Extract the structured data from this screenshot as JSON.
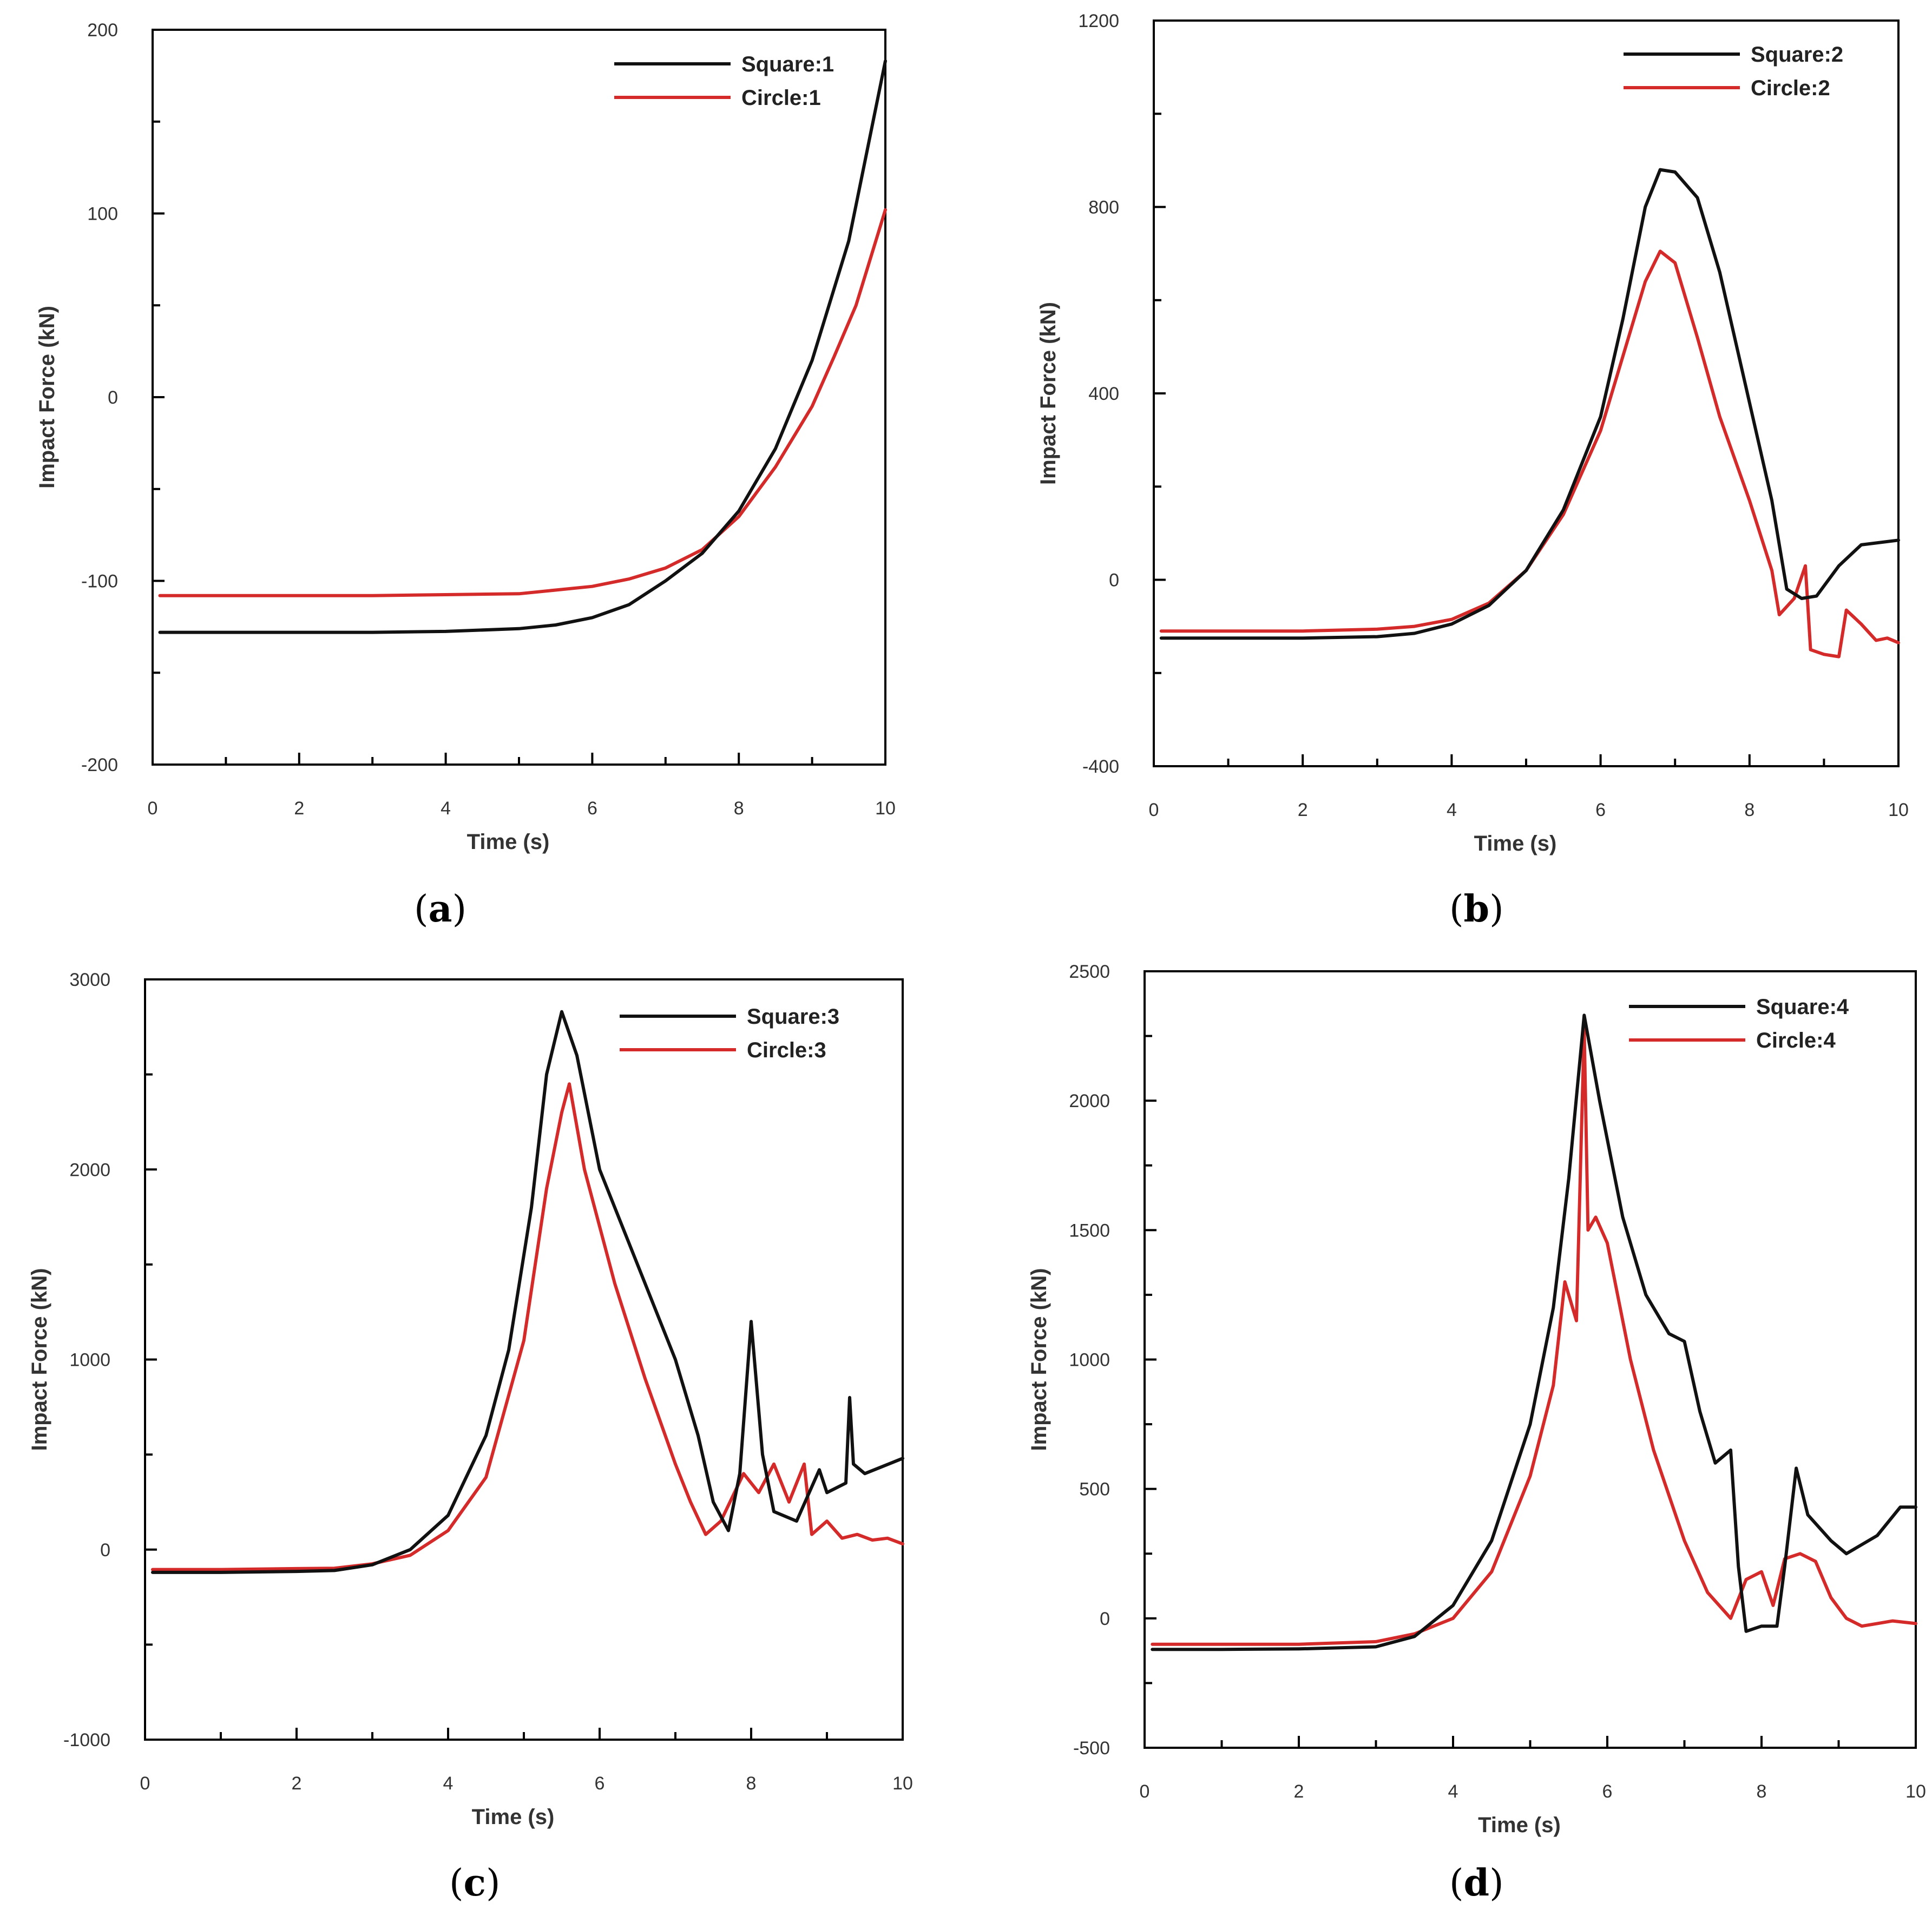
{
  "colors": {
    "square": "#111111",
    "circle": "#d42a2a",
    "axis": "#000000"
  },
  "chart_data": [
    {
      "type": "line",
      "panel": "a",
      "caption_letter": "a",
      "xlabel": "Time (s)",
      "ylabel": "Impact Force (kN)",
      "xlim": [
        0,
        10
      ],
      "ylim": [
        -200,
        200
      ],
      "xticks": [
        0,
        2,
        4,
        6,
        8,
        10
      ],
      "xtick_labels": [
        "0",
        "2",
        "4",
        "6",
        "8",
        "10"
      ],
      "yticks": [
        -200,
        -100,
        0,
        100,
        200
      ],
      "ytick_labels": [
        "-200",
        "-100",
        "0",
        "100",
        "200"
      ],
      "legend_position": "top-right",
      "grid": false,
      "series": [
        {
          "name": "Square:1",
          "color_key": "square",
          "x": [
            0.1,
            1,
            2,
            3,
            4,
            5,
            5.5,
            6,
            6.5,
            7,
            7.5,
            8,
            8.5,
            9,
            9.5,
            10
          ],
          "y": [
            -128,
            -128,
            -128,
            -128,
            -127.5,
            -126,
            -124,
            -120,
            -113,
            -100,
            -85,
            -62,
            -28,
            20,
            85,
            183
          ]
        },
        {
          "name": "Circle:1",
          "color_key": "circle",
          "x": [
            0.1,
            1,
            2,
            3,
            4,
            5,
            5.5,
            6,
            6.5,
            7,
            7.5,
            8,
            8.5,
            9,
            9.3,
            9.6,
            10
          ],
          "y": [
            -108,
            -108,
            -108,
            -108,
            -107.5,
            -107,
            -105,
            -103,
            -99,
            -93,
            -83,
            -65,
            -38,
            -5,
            22,
            50,
            102
          ]
        }
      ]
    },
    {
      "type": "line",
      "panel": "b",
      "caption_letter": "b",
      "xlabel": "Time (s)",
      "ylabel": "Impact Force (kN)",
      "xlim": [
        0,
        10
      ],
      "ylim": [
        -400,
        1200
      ],
      "xticks": [
        0,
        2,
        4,
        6,
        8,
        10
      ],
      "xtick_labels": [
        "0",
        "2",
        "4",
        "6",
        "8",
        "10"
      ],
      "yticks": [
        -400,
        0,
        400,
        800,
        1200
      ],
      "ytick_labels": [
        "-400",
        "0",
        "400",
        "800",
        "1200"
      ],
      "legend_position": "top-right",
      "grid": false,
      "series": [
        {
          "name": "Square:2",
          "color_key": "square",
          "x": [
            0.1,
            1,
            2,
            3,
            3.5,
            4,
            4.5,
            5,
            5.5,
            6,
            6.3,
            6.6,
            6.8,
            7,
            7.3,
            7.6,
            8,
            8.3,
            8.5,
            8.7,
            8.9,
            9.2,
            9.5,
            10
          ],
          "y": [
            -125,
            -125,
            -125,
            -122,
            -115,
            -95,
            -55,
            20,
            150,
            350,
            560,
            800,
            880,
            875,
            820,
            660,
            380,
            170,
            -20,
            -40,
            -35,
            30,
            75,
            85
          ]
        },
        {
          "name": "Circle:2",
          "color_key": "circle",
          "x": [
            0.1,
            1,
            2,
            3,
            3.5,
            4,
            4.5,
            5,
            5.5,
            6,
            6.3,
            6.6,
            6.8,
            7,
            7.3,
            7.6,
            8,
            8.3,
            8.4,
            8.6,
            8.75,
            8.82,
            9.0,
            9.2,
            9.3,
            9.5,
            9.7,
            9.85,
            10
          ],
          "y": [
            -110,
            -110,
            -110,
            -106,
            -100,
            -85,
            -50,
            20,
            140,
            320,
            480,
            640,
            705,
            680,
            520,
            350,
            170,
            20,
            -75,
            -40,
            30,
            -150,
            -160,
            -165,
            -65,
            -95,
            -130,
            -125,
            -135
          ]
        }
      ]
    },
    {
      "type": "line",
      "panel": "c",
      "caption_letter": "c",
      "xlabel": "Time (s)",
      "ylabel": "Impact Force (kN)",
      "xlim": [
        0,
        10
      ],
      "ylim": [
        -1000,
        3000
      ],
      "xticks": [
        0,
        2,
        4,
        6,
        8,
        10
      ],
      "xtick_labels": [
        "0",
        "2",
        "4",
        "6",
        "8",
        "10"
      ],
      "yticks": [
        -1000,
        0,
        1000,
        2000,
        3000
      ],
      "ytick_labels": [
        "-1000",
        "0",
        "1000",
        "2000",
        "3000"
      ],
      "legend_position": "top-right",
      "grid": false,
      "series": [
        {
          "name": "Square:3",
          "color_key": "square",
          "x": [
            0.1,
            1,
            2,
            2.5,
            3,
            3.5,
            4,
            4.5,
            4.8,
            5.1,
            5.3,
            5.5,
            5.7,
            6,
            6.5,
            7,
            7.3,
            7.5,
            7.7,
            7.85,
            8.0,
            8.15,
            8.3,
            8.6,
            8.9,
            9.0,
            9.25,
            9.3,
            9.35,
            9.5,
            10
          ],
          "y": [
            -120,
            -120,
            -115,
            -110,
            -80,
            0,
            180,
            600,
            1050,
            1800,
            2500,
            2830,
            2600,
            2000,
            1500,
            1000,
            600,
            250,
            100,
            400,
            1200,
            500,
            200,
            150,
            420,
            300,
            350,
            800,
            450,
            400,
            480
          ]
        },
        {
          "name": "Circle:3",
          "color_key": "circle",
          "x": [
            0.1,
            1,
            2,
            2.5,
            3,
            3.5,
            4,
            4.5,
            5,
            5.3,
            5.5,
            5.6,
            5.8,
            6.2,
            6.6,
            7,
            7.2,
            7.4,
            7.6,
            7.9,
            8.1,
            8.3,
            8.5,
            8.7,
            8.8,
            9,
            9.2,
            9.4,
            9.6,
            9.8,
            10
          ],
          "y": [
            -105,
            -105,
            -100,
            -98,
            -75,
            -30,
            100,
            380,
            1100,
            1900,
            2300,
            2450,
            2000,
            1400,
            900,
            450,
            250,
            80,
            150,
            400,
            300,
            450,
            250,
            450,
            80,
            150,
            60,
            80,
            50,
            60,
            30
          ]
        }
      ]
    },
    {
      "type": "line",
      "panel": "d",
      "caption_letter": "d",
      "xlabel": "Time (s)",
      "ylabel": "Impact Force (kN)",
      "xlim": [
        0,
        10
      ],
      "ylim": [
        -500,
        2500
      ],
      "xticks": [
        0,
        2,
        4,
        6,
        8,
        10
      ],
      "xtick_labels": [
        "0",
        "2",
        "4",
        "6",
        "8",
        "10"
      ],
      "yticks": [
        -500,
        0,
        500,
        1000,
        1500,
        2000,
        2500
      ],
      "ytick_labels": [
        "-500",
        "0",
        "500",
        "1000",
        "1500",
        "2000",
        "2500"
      ],
      "legend_position": "top-right",
      "grid": false,
      "series": [
        {
          "name": "Square:4",
          "color_key": "square",
          "x": [
            0.1,
            1,
            2,
            3,
            3.5,
            4,
            4.5,
            5,
            5.3,
            5.5,
            5.7,
            5.9,
            6.2,
            6.5,
            6.8,
            7.0,
            7.2,
            7.4,
            7.6,
            7.7,
            7.8,
            8.0,
            8.2,
            8.3,
            8.45,
            8.6,
            8.9,
            9.1,
            9.5,
            9.8,
            10
          ],
          "y": [
            -120,
            -120,
            -118,
            -110,
            -70,
            50,
            300,
            750,
            1200,
            1700,
            2330,
            2000,
            1550,
            1250,
            1100,
            1070,
            800,
            600,
            650,
            200,
            -50,
            -30,
            -30,
            200,
            580,
            400,
            300,
            250,
            320,
            430,
            430
          ]
        },
        {
          "name": "Circle:4",
          "color_key": "circle",
          "x": [
            0.1,
            1,
            2,
            3,
            3.5,
            4,
            4.5,
            5,
            5.3,
            5.45,
            5.6,
            5.7,
            5.75,
            5.85,
            6.0,
            6.3,
            6.6,
            7.0,
            7.3,
            7.6,
            7.8,
            8.0,
            8.15,
            8.3,
            8.5,
            8.7,
            8.9,
            9.1,
            9.3,
            9.5,
            9.7,
            10
          ],
          "y": [
            -100,
            -100,
            -100,
            -90,
            -60,
            0,
            180,
            550,
            900,
            1300,
            1150,
            2280,
            1500,
            1550,
            1450,
            1000,
            650,
            300,
            100,
            0,
            150,
            180,
            50,
            230,
            250,
            220,
            80,
            0,
            -30,
            -20,
            -10,
            -20
          ]
        }
      ]
    }
  ]
}
